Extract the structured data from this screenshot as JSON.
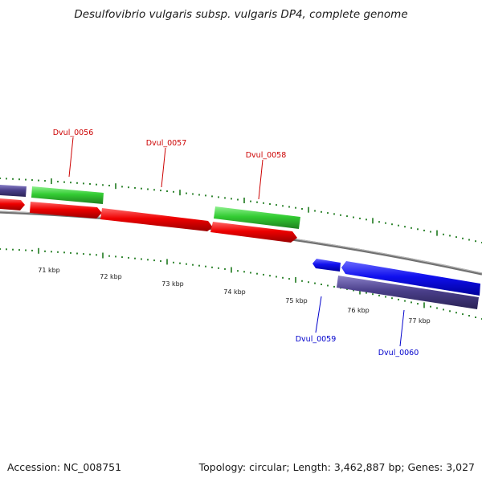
{
  "title": "Desulfovibrio vulgaris subsp. vulgaris DP4, complete genome",
  "footer": {
    "accession": "Accession: NC_008751",
    "summary": "Topology: circular; Length: 3,462,887 bp; Genes: 3,027"
  },
  "colors": {
    "backbone": "#808080",
    "tick": "#1e7a1e",
    "forward_cds": "#ee0000",
    "reverse_cds": "#1010ee",
    "forward_rna": "#33cc33",
    "reverse_rna": "#4a3f8a",
    "forward_label": "#cc0000",
    "reverse_label": "#0000cc"
  },
  "scale_labels": [
    {
      "id": "71",
      "text": "71 kbp"
    },
    {
      "id": "72",
      "text": "72 kbp"
    },
    {
      "id": "73",
      "text": "73 kbp"
    },
    {
      "id": "74",
      "text": "74 kbp"
    },
    {
      "id": "75",
      "text": "75 kbp"
    },
    {
      "id": "76",
      "text": "76 kbp"
    },
    {
      "id": "77",
      "text": "77 kbp"
    }
  ],
  "gene_labels": [
    {
      "id": "0056",
      "text": "Dvul_0056",
      "strand": "forward"
    },
    {
      "id": "0057",
      "text": "Dvul_0057",
      "strand": "forward"
    },
    {
      "id": "0058",
      "text": "Dvul_0058",
      "strand": "forward"
    },
    {
      "id": "0059",
      "text": "Dvul_0059",
      "strand": "reverse"
    },
    {
      "id": "0060",
      "text": "Dvul_0060",
      "strand": "reverse"
    }
  ]
}
